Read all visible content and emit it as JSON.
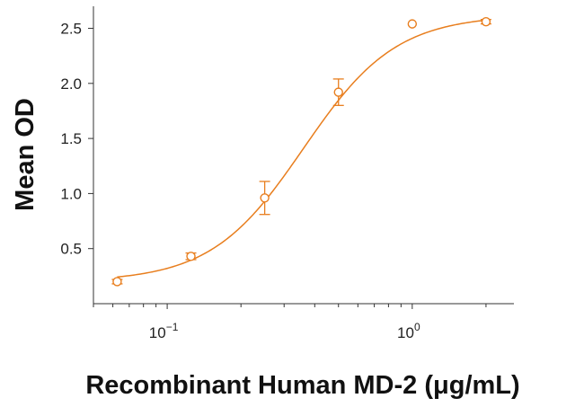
{
  "chart_data": {
    "type": "scatter",
    "title": "",
    "xlabel": "Recombinant Human MD-2 (μg/mL)",
    "ylabel": "Mean OD",
    "x_scale": "log10",
    "xlim": [
      0.05,
      2.6
    ],
    "ylim": [
      0,
      2.7
    ],
    "x_ticks": [
      {
        "value": 0.1,
        "base": "10",
        "exp": "−1"
      },
      {
        "value": 1,
        "base": "10",
        "exp": "0"
      }
    ],
    "y_ticks": [
      {
        "value": 0.5,
        "label": "0.5"
      },
      {
        "value": 1.0,
        "label": "1.0"
      },
      {
        "value": 1.5,
        "label": "1.5"
      },
      {
        "value": 2.0,
        "label": "2.0"
      },
      {
        "value": 2.5,
        "label": "2.5"
      }
    ],
    "series": [
      {
        "color": "#e87e1e",
        "points": [
          {
            "x": 0.0625,
            "y": 0.2,
            "err": 0.02
          },
          {
            "x": 0.125,
            "y": 0.43,
            "err": 0.03
          },
          {
            "x": 0.25,
            "y": 0.96,
            "err": 0.15
          },
          {
            "x": 0.5,
            "y": 1.92,
            "err": 0.12
          },
          {
            "x": 1.0,
            "y": 2.54,
            "err": 0.0
          },
          {
            "x": 2.0,
            "y": 2.56,
            "err": 0.02
          }
        ],
        "fit": {
          "model": "4PL",
          "bottom": 0.2,
          "top": 2.62,
          "ec50": 0.36,
          "hill": 2.3
        }
      }
    ],
    "grid": false,
    "legend": "none"
  }
}
